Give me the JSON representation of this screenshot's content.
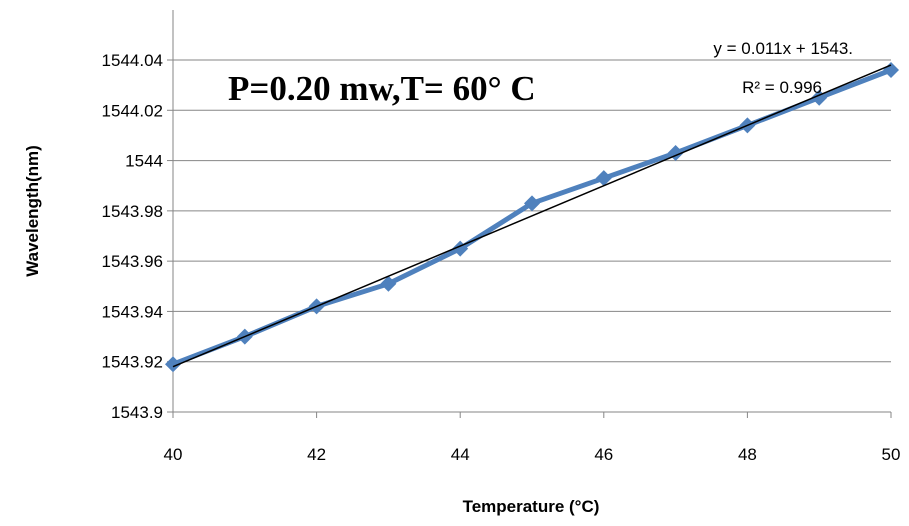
{
  "chart_data": {
    "type": "line",
    "title": "",
    "xlabel": "Temperature (°C)",
    "ylabel": "Wavelength(nm)",
    "xlim": [
      40,
      50
    ],
    "ylim": [
      1543.9,
      1544.05
    ],
    "x_ticks": [
      "40",
      "42",
      "44",
      "46",
      "48",
      "50"
    ],
    "y_ticks": [
      "1543.9",
      "1543.92",
      "1543.94",
      "1543.96",
      "1543.98",
      "1544",
      "1544.02",
      "1544.04"
    ],
    "grid": "horizontal",
    "series": [
      {
        "color": "#4f81bd",
        "marker": "diamond",
        "x": [
          40,
          41,
          42,
          43,
          44,
          45,
          46,
          47,
          48,
          49,
          50
        ],
        "y": [
          1543.919,
          1543.93,
          1543.942,
          1543.951,
          1543.965,
          1543.983,
          1543.993,
          1544.003,
          1544.014,
          1544.025,
          1544.036
        ]
      }
    ],
    "trendline": {
      "type": "linear",
      "color": "#000000",
      "x": [
        40,
        50
      ],
      "y": [
        1543.918,
        1544.038
      ],
      "equation": "y = 0.011x + 1543.",
      "r_squared": "R² = 0.996"
    },
    "annotation": "P=0.20 mw,T= 60° C"
  }
}
